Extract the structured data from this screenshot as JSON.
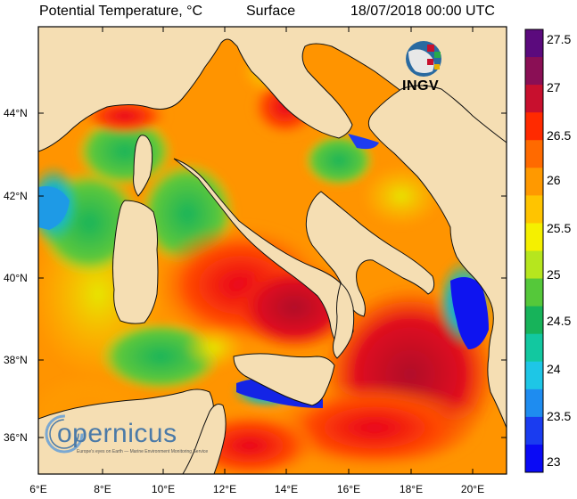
{
  "header": {
    "title": "Potential Temperature, °C",
    "level": "Surface",
    "date": "18/07/2018 00:00 UTC"
  },
  "map": {
    "land_color": "#f5deb3",
    "lat_labels": [
      "44°N",
      "42°N",
      "40°N",
      "38°N",
      "36°N"
    ],
    "lon_labels": [
      "6°E",
      "8°E",
      "10°E",
      "12°E",
      "14°E",
      "16°E",
      "18°E",
      "20°E"
    ]
  },
  "colorbar": {
    "labels": [
      "27.5",
      "27",
      "26.5",
      "26",
      "25.5",
      "25",
      "24.5",
      "24",
      "23.5",
      "23"
    ],
    "colors": [
      "#5b0a7d",
      "#8a0f55",
      "#c8102e",
      "#ff2a00",
      "#ff6a00",
      "#ff9900",
      "#ffc400",
      "#f5f000",
      "#b6e61e",
      "#55c83a",
      "#17b35a",
      "#12c8a0",
      "#1ec6e6",
      "#1e8cf0",
      "#1a3cf0",
      "#0a0af5"
    ]
  },
  "logos": {
    "ingv": "INGV",
    "copernicus": "opernicus",
    "copernicus_tagline": "Europe's eyes on Earth — Marine Environment Monitoring Service"
  }
}
